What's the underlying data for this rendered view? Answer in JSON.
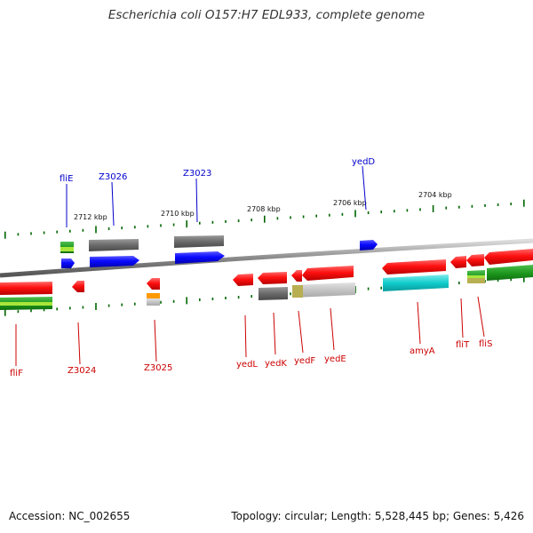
{
  "header": {
    "title": "Escherichia coli O157:H7 EDL933, complete genome"
  },
  "footer": {
    "accession": "Accession: NC_002655",
    "summary": "Topology: circular; Length: 5,528,445 bp; Genes: 5,426"
  },
  "map": {
    "kbp_labels": [
      "2712 kbp",
      "2710 kbp",
      "2708 kbp",
      "2706 kbp",
      "2704 kbp"
    ],
    "top_genes": [
      "fliE",
      "Z3026",
      "Z3023",
      "yedD"
    ],
    "bottom_genes": [
      "fliF",
      "Z3024",
      "Z3025",
      "yedL",
      "yedK",
      "yedF",
      "yedE",
      "amyA",
      "fliT",
      "fliS"
    ],
    "colors": {
      "forward_label": "#0000cc",
      "reverse_label": "#cc0000",
      "forward_cds": "#0000ff",
      "reverse_cds": "#ff0000",
      "tick": "#006600"
    }
  }
}
